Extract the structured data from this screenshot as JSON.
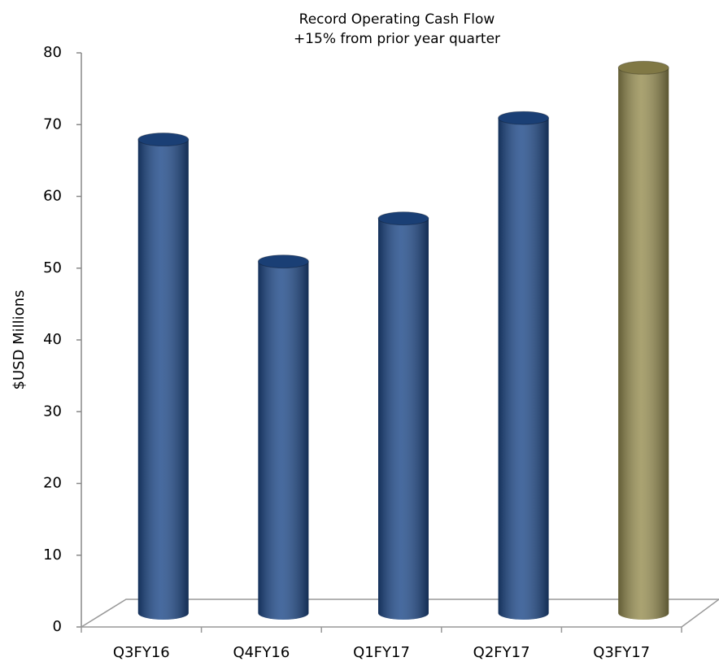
{
  "chart_data": {
    "type": "cylinder_bar",
    "title": "Record Operating Cash Flow",
    "subtitle": "+15% from prior year quarter",
    "y_label": "$USD Millions",
    "categories": [
      "Q3FY16",
      "Q4FY16",
      "Q1FY17",
      "Q2FY17",
      "Q3FY17"
    ],
    "values": [
      66,
      49,
      55,
      69,
      76
    ],
    "colors": [
      "#1f4a8a",
      "#1f4a8a",
      "#1f4a8a",
      "#1f4a8a",
      "#978e52"
    ],
    "ylim": [
      0,
      80
    ],
    "yticks": [
      0,
      10,
      20,
      30,
      40,
      50,
      60,
      70,
      80
    ],
    "grid": false
  }
}
